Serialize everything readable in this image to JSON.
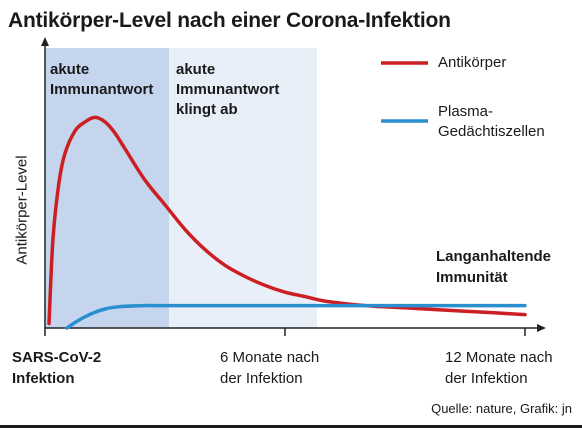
{
  "title": "Antikörper-Level nach einer Corona-Infektion",
  "phases": [
    {
      "line1": "akute",
      "line2": "Immunantwort"
    },
    {
      "line1": "akute",
      "line2": "Immunantwort",
      "line3": "klingt ab"
    }
  ],
  "legend": [
    {
      "line1": "Antikörper",
      "line2": "",
      "color": "#cc1f24"
    },
    {
      "line1": "Plasma-",
      "line2": "Gedächtiszellen",
      "color": "#2a8fcf"
    }
  ],
  "annotation": {
    "line1": "Langanhaltende",
    "line2": "Immunität"
  },
  "source": "Quelle: nature, Grafik: jn",
  "chart_data": {
    "type": "line",
    "title": "Antikörper-Level nach einer Corona-Infektion",
    "xlabel": "",
    "ylabel": "Antikörper-Level",
    "x_unit": "Monate nach der Infektion",
    "xlim": [
      0,
      12
    ],
    "ylim": [
      0,
      100
    ],
    "x_ticks": [
      {
        "x": 0,
        "line1": "SARS-CoV-2",
        "line2": "Infektion",
        "bold": true
      },
      {
        "x": 6,
        "line1": "6 Monate nach",
        "line2": "der Infektion",
        "bold": false
      },
      {
        "x": 12,
        "line1": "12 Monate nach",
        "line2": "der Infektion",
        "bold": false
      }
    ],
    "phase_ranges": [
      [
        0,
        3.1
      ],
      [
        3.1,
        6.8
      ]
    ],
    "phase_colors": [
      "#c5d5ee",
      "#e9eff9"
    ],
    "series": [
      {
        "name": "Antikörper",
        "color": "#cc1f24",
        "x": [
          0.1,
          0.2,
          0.35,
          0.5,
          0.75,
          1.0,
          1.25,
          1.5,
          1.75,
          2.0,
          2.5,
          3.0,
          3.5,
          4.0,
          4.5,
          5.0,
          5.5,
          6.0,
          6.5,
          7.0,
          8.0,
          9.0,
          10.0,
          11.0,
          12.0
        ],
        "y": [
          2,
          40,
          65,
          78,
          88,
          92,
          94,
          92,
          87,
          80,
          66,
          55,
          44,
          35,
          28,
          23,
          19,
          16,
          14,
          12,
          10,
          9,
          8,
          7,
          6
        ]
      },
      {
        "name": "Plasma-Gedächtiszellen",
        "color": "#2a8fcf",
        "x": [
          0.55,
          0.8,
          1.0,
          1.25,
          1.5,
          1.75,
          2.0,
          2.5,
          3.0,
          4.0,
          6.0,
          8.0,
          10.0,
          12.0
        ],
        "y": [
          0,
          3,
          5,
          7,
          8.5,
          9.3,
          9.7,
          10,
          10,
          10,
          10,
          10,
          10,
          10
        ]
      }
    ]
  }
}
